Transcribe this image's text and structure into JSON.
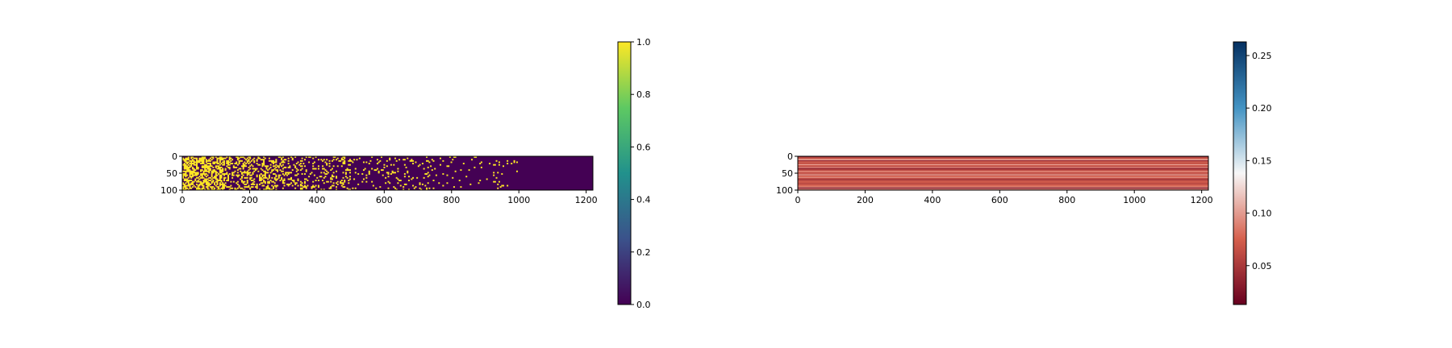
{
  "chart_data": [
    {
      "type": "heatmap",
      "title": "",
      "xlabel": "",
      "ylabel": "",
      "x_range": [
        0,
        1220
      ],
      "y_range": [
        0,
        100
      ],
      "y_inverted": true,
      "colormap": "viridis",
      "colormap_stops": [
        "#440154",
        "#3b528b",
        "#21918c",
        "#5ec962",
        "#fde725"
      ],
      "value_range": [
        0,
        1
      ],
      "binary_values": true,
      "x_ticks": [
        0,
        200,
        400,
        600,
        800,
        1000,
        1200
      ],
      "x_tick_labels": [
        "0",
        "200",
        "400",
        "600",
        "800",
        "1000",
        "1200"
      ],
      "y_ticks": [
        0,
        50,
        100
      ],
      "y_tick_labels": [
        "0",
        "50",
        "100"
      ],
      "colorbar": {
        "ticks": [
          0.0,
          0.2,
          0.4,
          0.6,
          0.8,
          1.0
        ],
        "tick_labels": [
          "0.0",
          "0.2",
          "0.4",
          "0.6",
          "0.8",
          "1.0"
        ]
      },
      "description_of_pattern": {
        "dense_until_x": 120,
        "sparse_until_x": 1000,
        "empty_after_x": 1000
      }
    },
    {
      "type": "heatmap",
      "title": "",
      "xlabel": "",
      "ylabel": "",
      "x_range": [
        0,
        1220
      ],
      "y_range": [
        0,
        100
      ],
      "y_inverted": true,
      "colormap": "RdBu",
      "colormap_stops": [
        "#67001f",
        "#d6604d",
        "#f7f7f7",
        "#4393c3",
        "#053061"
      ],
      "value_range": [
        0.013,
        0.263
      ],
      "row_constant": true,
      "x_ticks": [
        0,
        200,
        400,
        600,
        800,
        1000,
        1200
      ],
      "x_tick_labels": [
        "0",
        "200",
        "400",
        "600",
        "800",
        "1000",
        "1200"
      ],
      "y_ticks": [
        0,
        50,
        100
      ],
      "y_tick_labels": [
        "0",
        "50",
        "100"
      ],
      "colorbar": {
        "ticks": [
          0.05,
          0.1,
          0.15,
          0.2,
          0.25
        ],
        "tick_labels": [
          "0.05",
          "0.10",
          "0.15",
          "0.20",
          "0.25"
        ]
      }
    }
  ]
}
